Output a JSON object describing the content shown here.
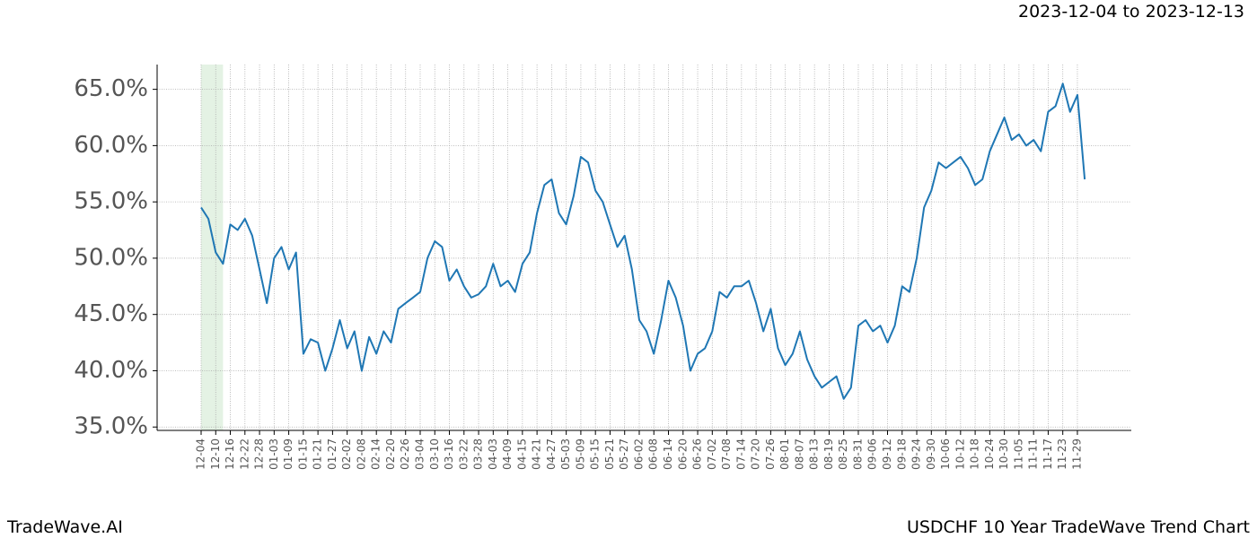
{
  "chart_data": {
    "type": "line",
    "title": "USDCHF 10 Year TradeWave Trend Chart",
    "subtitle": "2023-12-04 to 2023-12-13",
    "brand": "TradeWave.AI",
    "categories": [
      "12-04",
      null,
      "12-10",
      null,
      "12-16",
      null,
      "12-22",
      null,
      "12-28",
      null,
      "01-03",
      null,
      "01-09",
      null,
      "01-15",
      null,
      "01-21",
      null,
      "01-27",
      null,
      "02-02",
      null,
      "02-08",
      null,
      "02-14",
      null,
      "02-20",
      null,
      "02-26",
      null,
      "03-04",
      null,
      "03-10",
      null,
      "03-16",
      null,
      "03-22",
      null,
      "03-28",
      null,
      "04-03",
      null,
      "04-09",
      null,
      "04-15",
      null,
      "04-21",
      null,
      "04-27",
      null,
      "05-03",
      null,
      "05-09",
      null,
      "05-15",
      null,
      "05-21",
      null,
      "05-27",
      null,
      "06-02",
      null,
      "06-08",
      null,
      "06-14",
      null,
      "06-20",
      null,
      "06-26",
      null,
      "07-02",
      null,
      "07-08",
      null,
      "07-14",
      null,
      "07-20",
      null,
      "07-26",
      null,
      "08-01",
      null,
      "08-07",
      null,
      "08-13",
      null,
      "08-19",
      null,
      "08-25",
      null,
      "08-31",
      null,
      "09-06",
      null,
      "09-12",
      null,
      "09-18",
      null,
      "09-24",
      null,
      "09-30",
      null,
      "10-06",
      null,
      "10-12",
      null,
      "10-18",
      null,
      "10-24",
      null,
      "10-30",
      null,
      "11-05",
      null,
      "11-11",
      null,
      "11-17",
      null,
      "11-23",
      null,
      "11-29",
      null
    ],
    "series": [
      {
        "color": "#1f77b4",
        "values": [
          54.5,
          53.5,
          50.5,
          49.5,
          53,
          52.5,
          53.5,
          52,
          49,
          46,
          50,
          51,
          49,
          50.5,
          41.5,
          42.8,
          42.5,
          40,
          42,
          44.5,
          42,
          43.5,
          40,
          43,
          41.5,
          43.5,
          42.5,
          45.5,
          46,
          46.5,
          47,
          50,
          51.5,
          51,
          48,
          49,
          47.5,
          46.5,
          46.8,
          47.5,
          49.5,
          47.5,
          48,
          47,
          49.5,
          50.5,
          54,
          56.5,
          57,
          54,
          53,
          55.5,
          59,
          58.5,
          56,
          55,
          53,
          51,
          52,
          49,
          44.5,
          43.5,
          41.5,
          44.5,
          48,
          46.5,
          44,
          40,
          41.5,
          42,
          43.5,
          47,
          46.5,
          47.5,
          47.5,
          48,
          46,
          43.5,
          45.5,
          42,
          40.5,
          41.5,
          43.5,
          41,
          39.5,
          38.5,
          39,
          39.5,
          37.5,
          38.5,
          44,
          44.5,
          43.5,
          44,
          42.5,
          44,
          47.5,
          47,
          50,
          54.5,
          56,
          58.5,
          58,
          58.5,
          59,
          58,
          56.5,
          57,
          59.5,
          61,
          62.5,
          60.5,
          61,
          60,
          60.5,
          59.5,
          63,
          63.5,
          65.5,
          63,
          64.5,
          57
        ]
      }
    ],
    "ylim": [
      34.7,
      67.2
    ],
    "yticks": [
      {
        "value": 35,
        "label": "35.0%"
      },
      {
        "value": 40,
        "label": "40.0%"
      },
      {
        "value": 45,
        "label": "45.0%"
      },
      {
        "value": 50,
        "label": "50.0%"
      },
      {
        "value": 55,
        "label": "55.0%"
      },
      {
        "value": 60,
        "label": "60.0%"
      },
      {
        "value": 65,
        "label": "65.0%"
      }
    ],
    "grid": true
  }
}
